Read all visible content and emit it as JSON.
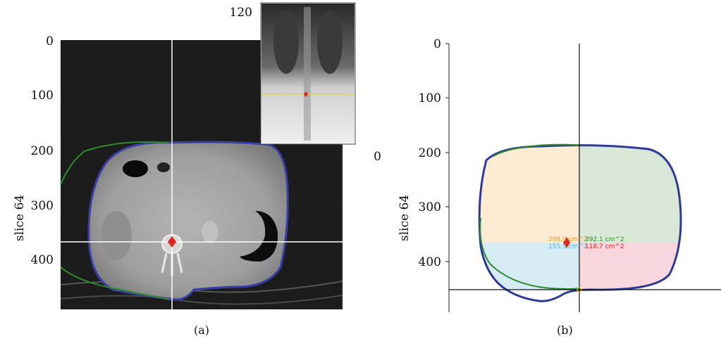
{
  "panel_a": {
    "ylabel": "slice 64",
    "yticks": [
      "0",
      "100",
      "200",
      "300",
      "400"
    ],
    "inset_tick_top": "120",
    "inset_tick_right": "0",
    "caption": "(a)"
  },
  "panel_b": {
    "ylabel": "slice 64",
    "yticks": [
      "0",
      "100",
      "200",
      "300",
      "400"
    ],
    "caption": "(b)",
    "quadrants": {
      "upper_left": "298.0 cm^2",
      "upper_right": "292.1 cm^2",
      "lower_left": "155.5 cm^2",
      "lower_right": "118.7 cm^2"
    }
  },
  "colors": {
    "outer_contour": "#2e3a99",
    "inner_contour": "#2e8b2e",
    "marker": "#e0241b",
    "crosshair": "#ffffff",
    "reference_line": "#e6d400",
    "upper_left_fill": "#fdebd3",
    "upper_right_fill": "#d9e8d6",
    "lower_left_fill": "#d6ecf4",
    "lower_right_fill": "#f8d6de",
    "upper_left_text": "#f0a030",
    "upper_right_text": "#2e8b2e",
    "lower_left_text": "#5ab4d6",
    "lower_right_text": "#e0241b"
  }
}
